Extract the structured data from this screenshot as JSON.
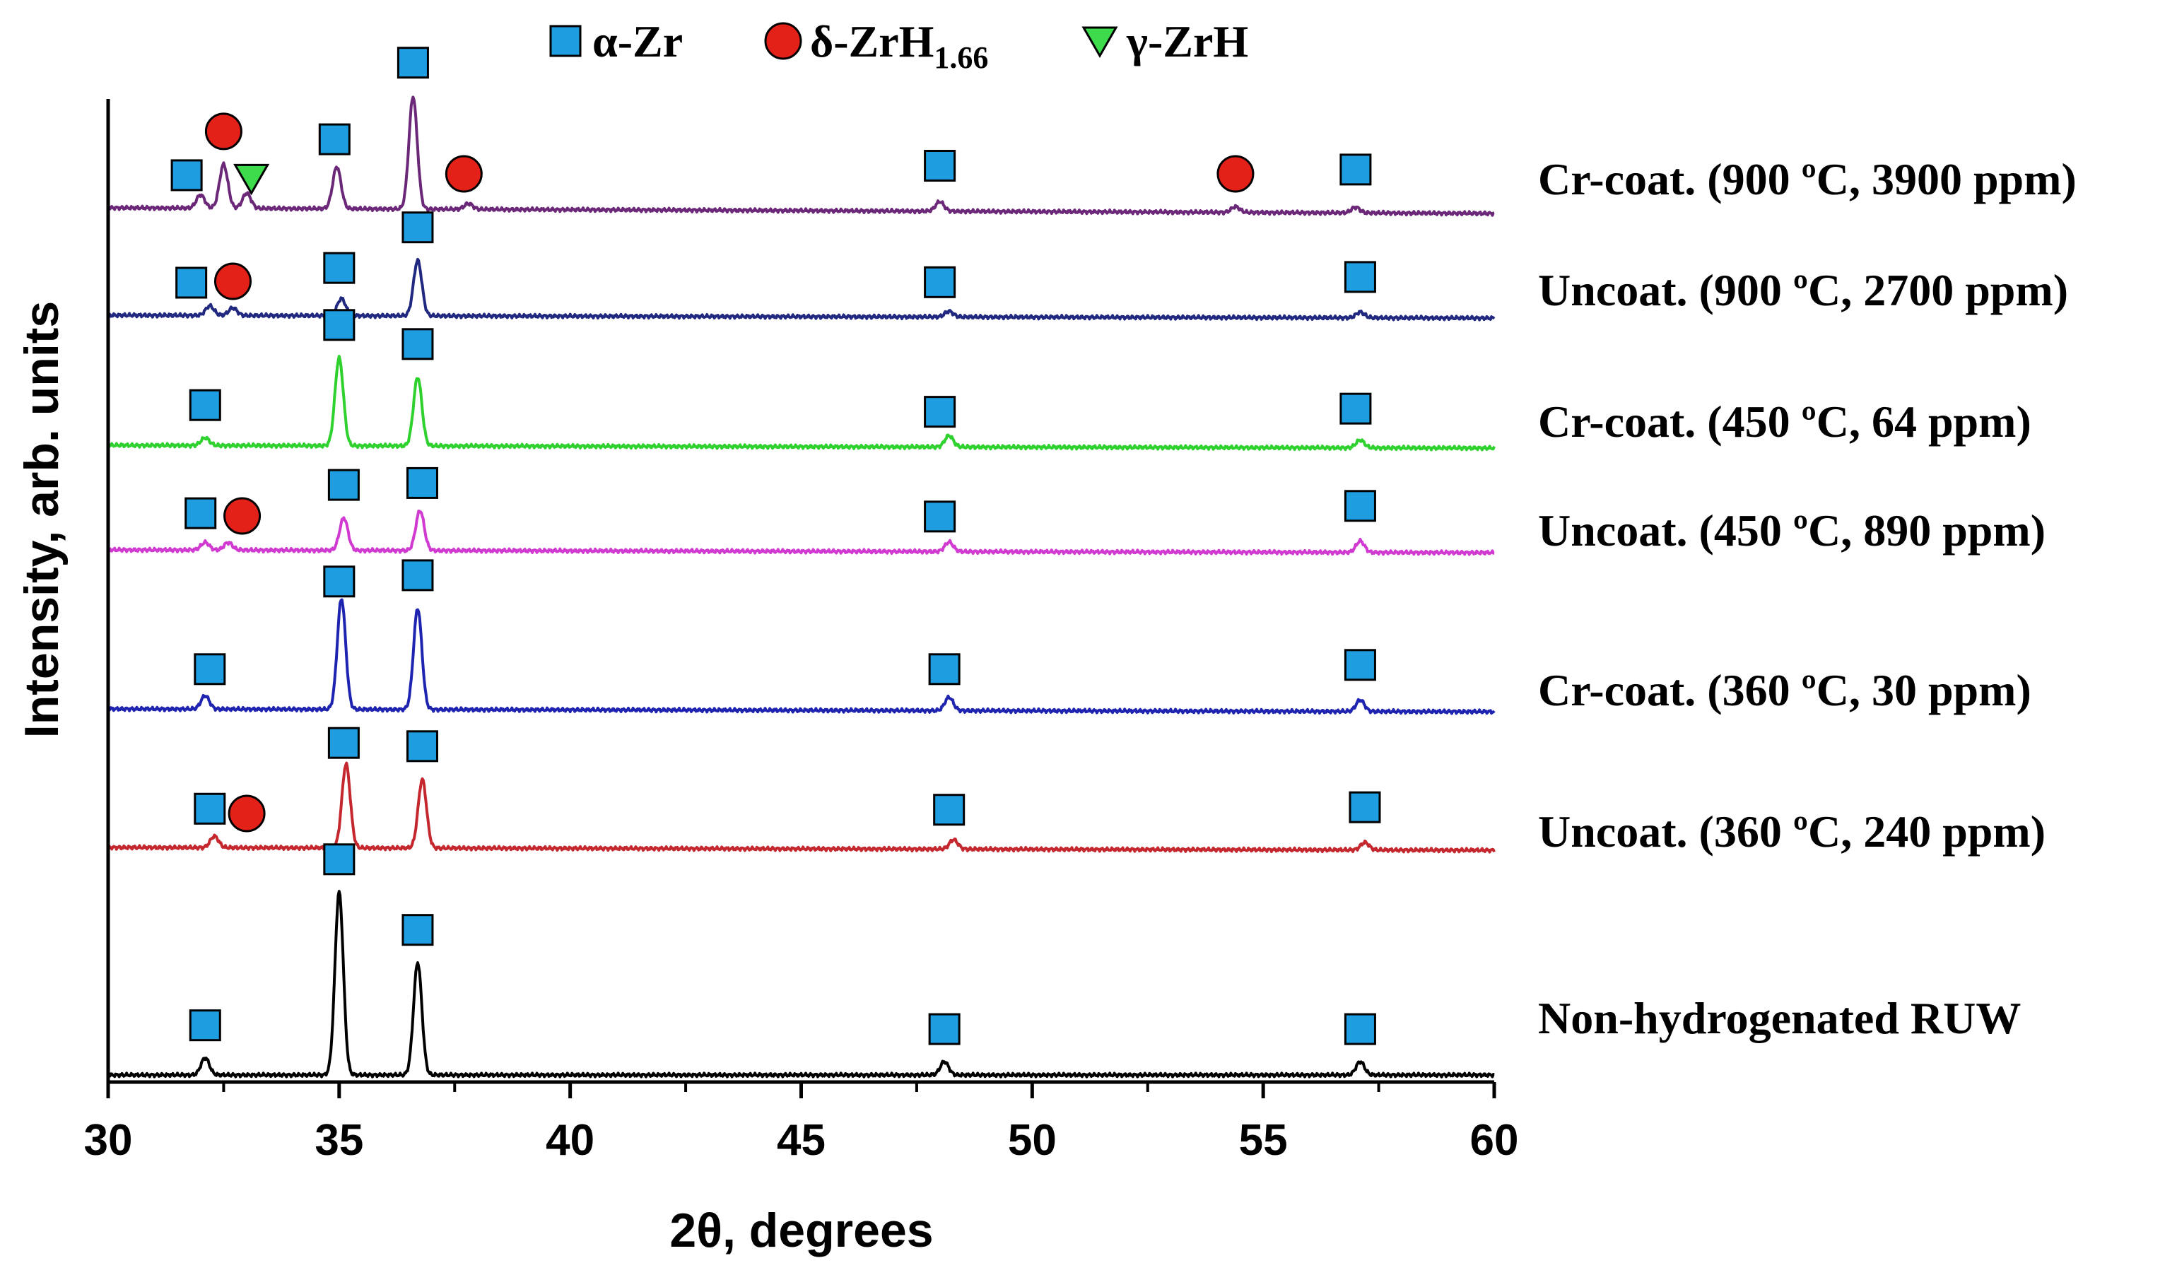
{
  "chart_data": {
    "type": "line",
    "title": "",
    "xlabel": "2θ, degrees",
    "ylabel": "Intensity, arb. units",
    "xlim": [
      30,
      60
    ],
    "xticks": [
      30,
      35,
      40,
      45,
      50,
      55,
      60
    ],
    "xtick_labels": [
      "30",
      "35",
      "40",
      "45",
      "50",
      "55",
      "60"
    ],
    "y_ticks_shown": false,
    "grid": false,
    "legend_position": "top-center",
    "legend": [
      {
        "key": "alpha",
        "symbol": "square",
        "label": "α-Zr",
        "color": "#1e9ee0"
      },
      {
        "key": "delta",
        "symbol": "circle",
        "label": "δ-ZrH",
        "subscript": "1.66",
        "color": "#e32119"
      },
      {
        "key": "gamma",
        "symbol": "triangle-down",
        "label": "γ-ZrH",
        "color": "#3ddc4d"
      }
    ],
    "series": [
      {
        "name": "Non-hydrogenated RUW",
        "color": "#000000",
        "peaks": [
          [
            32.1,
            0.09
          ],
          [
            35.0,
            0.96
          ],
          [
            36.7,
            0.59
          ],
          [
            48.1,
            0.07
          ],
          [
            57.1,
            0.07
          ]
        ],
        "markers": [
          {
            "phase": "alpha",
            "x": 32.1
          },
          {
            "phase": "alpha",
            "x": 35.0
          },
          {
            "phase": "alpha",
            "x": 36.7
          },
          {
            "phase": "alpha",
            "x": 48.1
          },
          {
            "phase": "alpha",
            "x": 57.1
          }
        ]
      },
      {
        "name": "Uncoat. (360 ºC, 240 ppm)",
        "color": "#c4282e",
        "peaks": [
          [
            32.3,
            0.06
          ],
          [
            35.15,
            0.44
          ],
          [
            36.8,
            0.36
          ],
          [
            48.3,
            0.05
          ],
          [
            57.2,
            0.04
          ]
        ],
        "markers": [
          {
            "phase": "alpha",
            "x": 32.2
          },
          {
            "phase": "delta",
            "x": 33.0
          },
          {
            "phase": "alpha",
            "x": 35.1
          },
          {
            "phase": "alpha",
            "x": 36.8
          },
          {
            "phase": "alpha",
            "x": 48.2
          },
          {
            "phase": "alpha",
            "x": 57.2
          }
        ]
      },
      {
        "name": "Cr-coat. (360 ºC, 30 ppm)",
        "color": "#1e24b0",
        "peaks": [
          [
            32.1,
            0.07
          ],
          [
            35.05,
            0.58
          ],
          [
            36.7,
            0.53
          ],
          [
            48.2,
            0.07
          ],
          [
            57.1,
            0.06
          ]
        ],
        "markers": [
          {
            "phase": "alpha",
            "x": 32.2
          },
          {
            "phase": "alpha",
            "x": 35.0
          },
          {
            "phase": "alpha",
            "x": 36.7
          },
          {
            "phase": "alpha",
            "x": 48.1
          },
          {
            "phase": "alpha",
            "x": 57.1
          }
        ]
      },
      {
        "name": "Uncoat. (450 ºC, 890 ppm)",
        "color": "#d13ad1",
        "peaks": [
          [
            32.1,
            0.04
          ],
          [
            32.6,
            0.04
          ],
          [
            35.1,
            0.17
          ],
          [
            36.75,
            0.21
          ],
          [
            48.2,
            0.05
          ],
          [
            57.1,
            0.06
          ]
        ],
        "markers": [
          {
            "phase": "alpha",
            "x": 32.0
          },
          {
            "phase": "delta",
            "x": 32.9
          },
          {
            "phase": "alpha",
            "x": 35.1
          },
          {
            "phase": "alpha",
            "x": 36.8
          },
          {
            "phase": "alpha",
            "x": 48.0
          },
          {
            "phase": "alpha",
            "x": 57.1
          }
        ]
      },
      {
        "name": "Cr-coat. (450 ºC, 64 ppm)",
        "color": "#2fd12f",
        "peaks": [
          [
            32.1,
            0.04
          ],
          [
            35.0,
            0.46
          ],
          [
            36.7,
            0.36
          ],
          [
            48.2,
            0.06
          ],
          [
            57.1,
            0.04
          ]
        ],
        "markers": [
          {
            "phase": "alpha",
            "x": 32.1
          },
          {
            "phase": "alpha",
            "x": 35.0
          },
          {
            "phase": "alpha",
            "x": 36.7
          },
          {
            "phase": "alpha",
            "x": 48.0
          },
          {
            "phase": "alpha",
            "x": 57.0
          }
        ]
      },
      {
        "name": "Uncoat. (900 ºC, 2700 ppm)",
        "color": "#202880",
        "peaks": [
          [
            32.2,
            0.05
          ],
          [
            32.7,
            0.04
          ],
          [
            35.05,
            0.09
          ],
          [
            36.7,
            0.29
          ],
          [
            48.2,
            0.03
          ],
          [
            57.1,
            0.03
          ]
        ],
        "markers": [
          {
            "phase": "alpha",
            "x": 31.8
          },
          {
            "phase": "delta",
            "x": 32.7
          },
          {
            "phase": "alpha",
            "x": 35.0
          },
          {
            "phase": "alpha",
            "x": 36.7
          },
          {
            "phase": "alpha",
            "x": 48.0
          },
          {
            "phase": "alpha",
            "x": 57.1
          }
        ]
      },
      {
        "name": "Cr-coat. (900 ºC, 3900 ppm)",
        "color": "#6b2778",
        "peaks": [
          [
            32.0,
            0.07
          ],
          [
            32.5,
            0.23
          ],
          [
            33.0,
            0.08
          ],
          [
            34.95,
            0.22
          ],
          [
            36.6,
            0.59
          ],
          [
            37.8,
            0.03
          ],
          [
            48.0,
            0.05
          ],
          [
            54.4,
            0.03
          ],
          [
            57.0,
            0.03
          ]
        ],
        "markers": [
          {
            "phase": "alpha",
            "x": 31.7
          },
          {
            "phase": "delta",
            "x": 32.5
          },
          {
            "phase": "gamma",
            "x": 33.1
          },
          {
            "phase": "alpha",
            "x": 34.9
          },
          {
            "phase": "alpha",
            "x": 36.6
          },
          {
            "phase": "delta",
            "x": 37.7
          },
          {
            "phase": "alpha",
            "x": 48.0
          },
          {
            "phase": "delta",
            "x": 54.4
          },
          {
            "phase": "alpha",
            "x": 57.0
          }
        ]
      }
    ]
  }
}
